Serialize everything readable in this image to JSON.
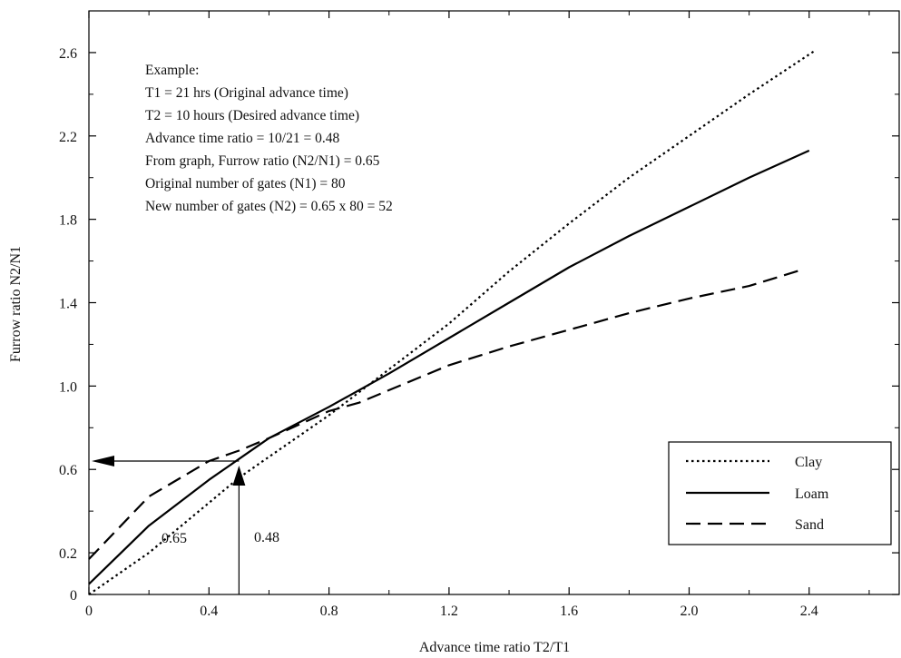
{
  "chart_data": {
    "type": "line",
    "xlabel": "Advance time ratio T2/T1",
    "ylabel": "Furrow ratio N2/N1",
    "xlim": [
      0,
      2.7
    ],
    "ylim": [
      0,
      2.8
    ],
    "x_ticks": [
      0,
      0.4,
      0.8,
      1.2,
      1.6,
      2.0,
      2.4
    ],
    "x_tick_labels": [
      "0",
      "0.4",
      "0.8",
      "1.2",
      "1.6",
      "2.0",
      "2.4"
    ],
    "y_ticks": [
      0,
      0.2,
      0.6,
      1.0,
      1.4,
      1.8,
      2.2,
      2.6
    ],
    "y_tick_labels": [
      "0",
      "0.2",
      "0.6",
      "1.0",
      "1.4",
      "1.8",
      "2.2",
      "2.6"
    ],
    "grid": false,
    "legend_position": "bottom-right",
    "series": [
      {
        "name": "Clay",
        "style": "dotted",
        "x": [
          0,
          0.2,
          0.4,
          0.5,
          0.6,
          0.8,
          1.0,
          1.2,
          1.4,
          1.6,
          1.8,
          2.0,
          2.2,
          2.42
        ],
        "y": [
          0.0,
          0.2,
          0.44,
          0.56,
          0.66,
          0.86,
          1.08,
          1.3,
          1.55,
          1.78,
          2.0,
          2.2,
          2.4,
          2.61
        ]
      },
      {
        "name": "Loam",
        "style": "solid",
        "x": [
          0,
          0.2,
          0.4,
          0.5,
          0.6,
          0.8,
          1.0,
          1.2,
          1.4,
          1.6,
          1.8,
          2.0,
          2.2,
          2.4
        ],
        "y": [
          0.05,
          0.33,
          0.55,
          0.65,
          0.75,
          0.9,
          1.06,
          1.23,
          1.4,
          1.57,
          1.72,
          1.86,
          2.0,
          2.13
        ]
      },
      {
        "name": "Sand",
        "style": "dashed",
        "x": [
          0,
          0.2,
          0.4,
          0.5,
          0.6,
          0.8,
          0.9,
          1.0,
          1.2,
          1.4,
          1.6,
          1.8,
          2.0,
          2.2,
          2.38
        ],
        "y": [
          0.17,
          0.47,
          0.64,
          0.69,
          0.75,
          0.88,
          0.92,
          0.98,
          1.1,
          1.19,
          1.27,
          1.35,
          1.42,
          1.48,
          1.56
        ]
      }
    ],
    "annotations": {
      "example_lines": [
        "Example:",
        "T1 = 21 hrs (Original advance time)",
        "T2 = 10 hours (Desired advance time)",
        "Advance time ratio = 10/21 = 0.48",
        "From graph, Furrow ratio (N2/N1) = 0.65",
        "Original number of gates (N1) = 80",
        "New number of gates (N2) = 0.65 x 80 = 52"
      ],
      "x_marker_value": 0.5,
      "x_marker_label": "0.48",
      "y_marker_value": 0.64,
      "y_marker_label": "0.65"
    }
  }
}
